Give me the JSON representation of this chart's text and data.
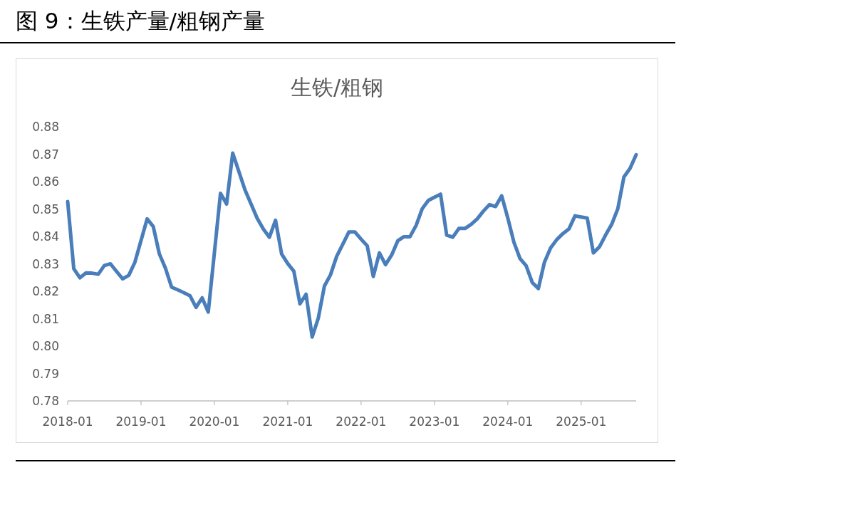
{
  "chart_data": {
    "type": "line",
    "title": "图 9：生铁产量/粗钢产量",
    "subtitle": "生铁/粗钢",
    "x": [
      "2018-01",
      "2018-02",
      "2018-03",
      "2018-04",
      "2018-05",
      "2018-06",
      "2018-07",
      "2018-08",
      "2018-09",
      "2018-10",
      "2018-11",
      "2018-12",
      "2019-01",
      "2019-02",
      "2019-03",
      "2019-04",
      "2019-05",
      "2019-06",
      "2019-07",
      "2019-08",
      "2019-09",
      "2019-10",
      "2019-11",
      "2019-12",
      "2020-01",
      "2020-02",
      "2020-03",
      "2020-04",
      "2020-05",
      "2020-06",
      "2020-07",
      "2020-08",
      "2020-09",
      "2020-10",
      "2020-11",
      "2020-12",
      "2021-01",
      "2021-02",
      "2021-03",
      "2021-04",
      "2021-05",
      "2021-06",
      "2021-07",
      "2021-08",
      "2021-09",
      "2021-10",
      "2021-11",
      "2021-12",
      "2022-01",
      "2022-02",
      "2022-03",
      "2022-04",
      "2022-05",
      "2022-06",
      "2022-07",
      "2022-08",
      "2022-09",
      "2022-10",
      "2022-11",
      "2022-12",
      "2023-01",
      "2023-02",
      "2023-03",
      "2023-04",
      "2023-05",
      "2023-06",
      "2023-07",
      "2023-08",
      "2023-09",
      "2023-10",
      "2023-11",
      "2023-12",
      "2024-01",
      "2024-02",
      "2024-03",
      "2024-04",
      "2024-05",
      "2024-06",
      "2024-07",
      "2024-08",
      "2024-09",
      "2024-10",
      "2024-11",
      "2024-12",
      "2025-01",
      "2025-02",
      "2025-03",
      "2025-04",
      "2025-05",
      "2025-06",
      "2025-07",
      "2025-08",
      "2025-09",
      "2025-10"
    ],
    "series": [
      {
        "color": "#4a7ebb",
        "values": [
          0.8527,
          0.8282,
          0.8249,
          0.8267,
          0.8266,
          0.8262,
          0.8294,
          0.83,
          0.8272,
          0.8245,
          0.8258,
          0.8306,
          0.8385,
          0.8464,
          0.8436,
          0.8336,
          0.8284,
          0.8215,
          0.8205,
          0.8195,
          0.8184,
          0.8141,
          0.8176,
          0.8124,
          0.834,
          0.8557,
          0.8518,
          0.8704,
          0.8637,
          0.857,
          0.8518,
          0.8466,
          0.8427,
          0.8397,
          0.8459,
          0.8336,
          0.8301,
          0.8273,
          0.8154,
          0.8189,
          0.8033,
          0.8102,
          0.8219,
          0.826,
          0.8327,
          0.8371,
          0.8416,
          0.8416,
          0.839,
          0.8366,
          0.8254,
          0.834,
          0.8297,
          0.8332,
          0.8384,
          0.8399,
          0.8399,
          0.844,
          0.8501,
          0.8531,
          0.8543,
          0.8554,
          0.8405,
          0.8397,
          0.8429,
          0.8429,
          0.8444,
          0.8464,
          0.8492,
          0.8516,
          0.8509,
          0.8548,
          0.8467,
          0.8379,
          0.8319,
          0.8293,
          0.8232,
          0.821,
          0.8306,
          0.8358,
          0.8388,
          0.841,
          0.8427,
          0.8475,
          0.8471,
          0.8467,
          0.834,
          0.8362,
          0.8405,
          0.8444,
          0.8501,
          0.8617,
          0.8648,
          0.8698
        ]
      }
    ],
    "xlim": [
      "2018-01",
      "2025-10"
    ],
    "xticks": [
      "2018-01",
      "2019-01",
      "2020-01",
      "2021-01",
      "2022-01",
      "2023-01",
      "2024-01",
      "2025-01"
    ],
    "ylim": [
      0.78,
      0.88
    ],
    "yticks": [
      0.78,
      0.79,
      {
        "value": 0.8,
        "label": "0.80"
      },
      0.81,
      0.82,
      0.83,
      0.84,
      0.85,
      0.86,
      0.87,
      0.88
    ],
    "grid": false,
    "marker": "none",
    "line_style": "solid"
  }
}
